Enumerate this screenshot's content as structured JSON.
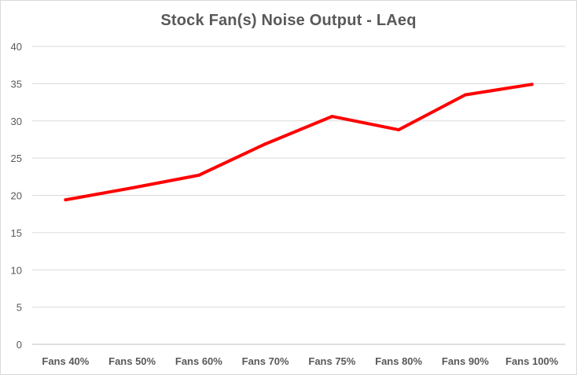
{
  "chart_data": {
    "type": "line",
    "title": "Stock Fan(s) Noise Output - LAeq",
    "xlabel": "",
    "ylabel": "",
    "categories": [
      "Fans 40%",
      "Fans 50%",
      "Fans 60%",
      "Fans 70%",
      "Fans 75%",
      "Fans 80%",
      "Fans 90%",
      "Fans 100%"
    ],
    "series": [
      {
        "values": [
          19.4,
          21.0,
          22.7,
          26.9,
          30.6,
          28.8,
          33.5,
          34.9
        ],
        "color": "#ff0000"
      }
    ],
    "ylim": [
      0,
      40
    ],
    "yticks": [
      0,
      5,
      10,
      15,
      20,
      25,
      30,
      35,
      40
    ],
    "grid": true,
    "legend": "none"
  }
}
